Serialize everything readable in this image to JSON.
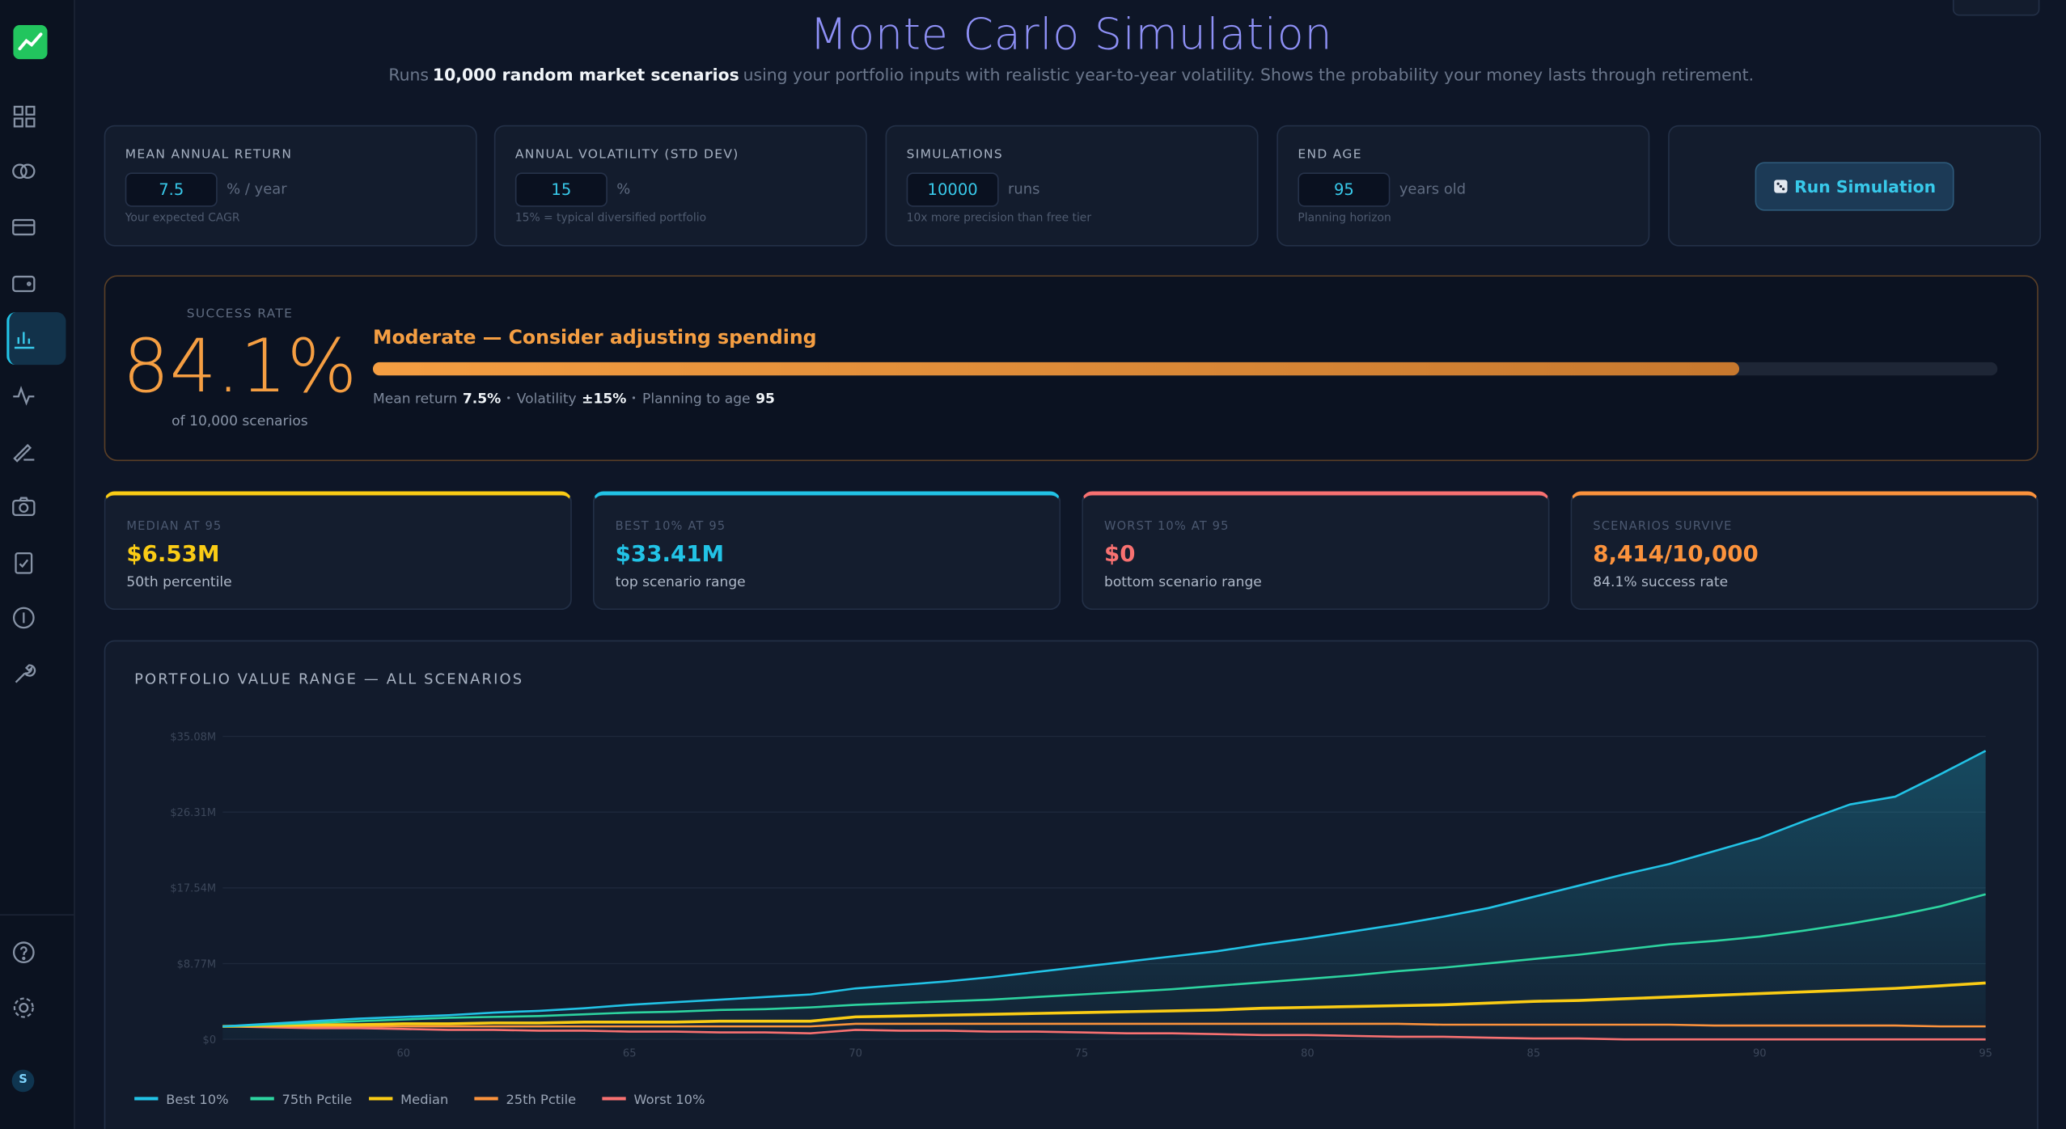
{
  "header": {
    "title": "Monte Carlo Simulation",
    "subtitle": {
      "before": "Runs",
      "emphasis": "10,000 random market scenarios",
      "after": "using your portfolio inputs with realistic year-to-year volatility. Shows the probability your money lasts through retirement."
    }
  },
  "sidebar": {
    "avatar": "S"
  },
  "inputs": [
    {
      "label": "MEAN ANNUAL RETURN",
      "value": 7.5,
      "unit": "% / year",
      "hint": "Your expected CAGR"
    },
    {
      "label": "ANNUAL VOLATILITY (STD DEV)",
      "value": 15,
      "unit": "%",
      "hint": "15% = typical diversified portfolio"
    },
    {
      "label": "SIMULATIONS",
      "value": 10000,
      "unit": "runs",
      "hint": "10x more precision than free tier"
    },
    {
      "label": "END AGE",
      "value": 95,
      "unit": "years old",
      "hint": "Planning horizon"
    }
  ],
  "run_button": "Run Simulation",
  "success": {
    "label": "SUCCESS RATE",
    "rate": {
      "value": 84.1,
      "label": "84.1%"
    },
    "caption": "of 10,000 scenarios",
    "verdict": "Moderate — Consider adjusting spending",
    "details": [
      {
        "label": "Mean return",
        "value": "7.5%"
      },
      {
        "label": "Volatility",
        "value": "±15%"
      },
      {
        "label": "Planning to age",
        "value": "95"
      }
    ]
  },
  "stats": [
    {
      "label": "MEDIAN AT 95",
      "value": "$6.53M",
      "note": "50th percentile",
      "color": "#facc15"
    },
    {
      "label": "BEST 10% AT 95",
      "value": "$33.41M",
      "note": "top scenario range",
      "color": "#22c3e6"
    },
    {
      "label": "WORST 10% AT 95",
      "value": "$0",
      "note": "bottom scenario range",
      "color": "#f87171"
    },
    {
      "label": "SCENARIOS SURVIVE",
      "value": "8,414/10,000",
      "note": "84.1% success rate",
      "color": "#fb923c"
    }
  ],
  "chart_data": {
    "type": "line",
    "title": "PORTFOLIO VALUE RANGE — ALL SCENARIOS",
    "x": [
      56,
      57,
      58,
      59,
      60,
      61,
      62,
      63,
      64,
      65,
      66,
      67,
      68,
      69,
      70,
      71,
      72,
      73,
      74,
      75,
      76,
      77,
      78,
      79,
      80,
      81,
      82,
      83,
      84,
      85,
      86,
      87,
      88,
      89,
      90,
      91,
      92,
      93,
      94,
      95
    ],
    "xlim": [
      56,
      95
    ],
    "xticks": [
      60,
      65,
      70,
      75,
      80,
      85,
      90,
      95
    ],
    "ylim": [
      0,
      35.08
    ],
    "yticks": [
      {
        "value": 0,
        "label": "$0"
      },
      {
        "value": 8.77,
        "label": "$8.77M"
      },
      {
        "value": 17.54,
        "label": "$17.54M"
      },
      {
        "value": 26.31,
        "label": "$26.31M"
      },
      {
        "value": 35.08,
        "label": "$35.08M"
      }
    ],
    "grid": true,
    "legend": "bottom-left",
    "series": [
      {
        "name": "Best 10%",
        "color": "#22c3e6",
        "values": [
          1.5,
          1.8,
          2.1,
          2.4,
          2.6,
          2.8,
          3.1,
          3.3,
          3.6,
          4.0,
          4.3,
          4.6,
          4.9,
          5.2,
          5.9,
          6.3,
          6.7,
          7.2,
          7.8,
          8.4,
          9.0,
          9.6,
          10.2,
          11.0,
          11.7,
          12.5,
          13.3,
          14.2,
          15.2,
          16.5,
          17.8,
          19.1,
          20.3,
          21.8,
          23.3,
          25.3,
          27.2,
          28.1,
          30.7,
          33.41
        ]
      },
      {
        "name": "75th Pctile",
        "color": "#2dd4a0",
        "values": [
          1.5,
          1.7,
          1.9,
          2.1,
          2.3,
          2.5,
          2.6,
          2.7,
          2.9,
          3.1,
          3.2,
          3.4,
          3.5,
          3.7,
          4.0,
          4.2,
          4.4,
          4.6,
          4.9,
          5.2,
          5.5,
          5.8,
          6.2,
          6.6,
          7.0,
          7.4,
          7.9,
          8.3,
          8.8,
          9.3,
          9.8,
          10.4,
          11.0,
          11.4,
          11.9,
          12.6,
          13.4,
          14.3,
          15.4,
          16.8
        ]
      },
      {
        "name": "Median",
        "color": "#facc15",
        "values": [
          1.5,
          1.6,
          1.7,
          1.7,
          1.8,
          1.8,
          1.9,
          1.9,
          2.0,
          2.0,
          2.0,
          2.1,
          2.1,
          2.1,
          2.6,
          2.7,
          2.8,
          2.9,
          3.0,
          3.1,
          3.2,
          3.3,
          3.4,
          3.6,
          3.7,
          3.8,
          3.9,
          4.0,
          4.2,
          4.4,
          4.5,
          4.7,
          4.9,
          5.1,
          5.3,
          5.5,
          5.7,
          5.9,
          6.2,
          6.53
        ]
      },
      {
        "name": "25th Pctile",
        "color": "#fb923c",
        "values": [
          1.5,
          1.5,
          1.5,
          1.5,
          1.5,
          1.5,
          1.5,
          1.5,
          1.5,
          1.5,
          1.5,
          1.5,
          1.5,
          1.5,
          1.8,
          1.8,
          1.8,
          1.8,
          1.8,
          1.8,
          1.8,
          1.8,
          1.8,
          1.8,
          1.8,
          1.8,
          1.8,
          1.7,
          1.7,
          1.7,
          1.7,
          1.7,
          1.7,
          1.6,
          1.6,
          1.6,
          1.6,
          1.6,
          1.5,
          1.5
        ]
      },
      {
        "name": "Worst 10%",
        "color": "#f87171",
        "values": [
          1.5,
          1.4,
          1.3,
          1.3,
          1.2,
          1.1,
          1.1,
          1.0,
          1.0,
          0.9,
          0.9,
          0.8,
          0.8,
          0.7,
          1.1,
          1.0,
          1.0,
          0.9,
          0.9,
          0.8,
          0.7,
          0.7,
          0.6,
          0.5,
          0.5,
          0.4,
          0.3,
          0.3,
          0.2,
          0.1,
          0.1,
          0,
          0,
          0,
          0,
          0,
          0,
          0,
          0,
          0
        ]
      }
    ]
  }
}
